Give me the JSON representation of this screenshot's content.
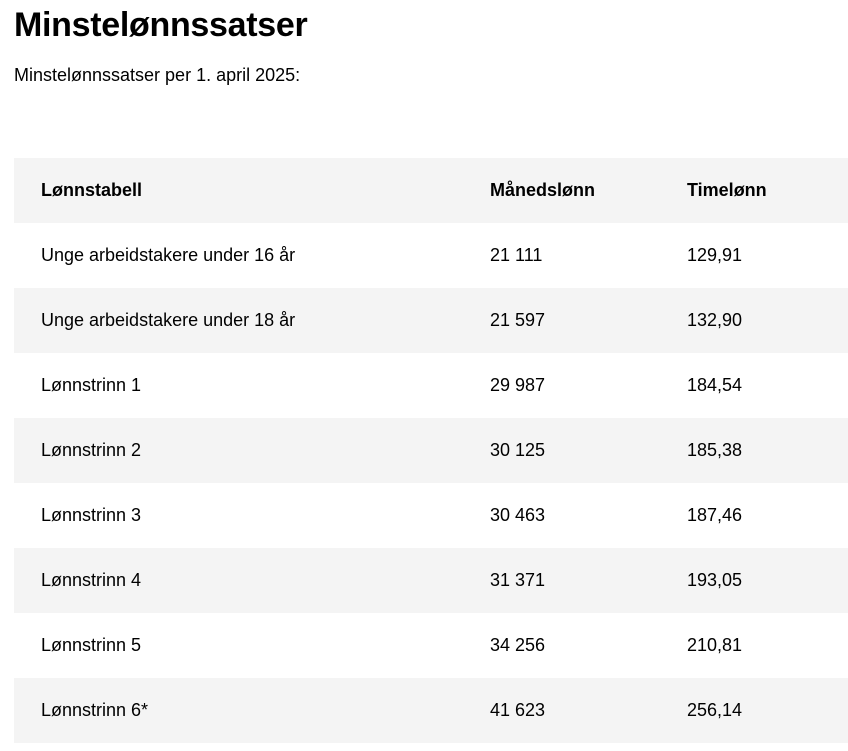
{
  "page": {
    "title": "Minstelønnssatser",
    "subtitle": "Minstelønnssatser per 1. april 2025:"
  },
  "table": {
    "headers": [
      "Lønnstabell",
      "Månedslønn",
      "Timelønn"
    ],
    "rows": [
      [
        "Unge arbeidstakere under 16 år",
        "21 111",
        "129,91"
      ],
      [
        "Unge arbeidstakere under 18 år",
        "21 597",
        "132,90"
      ],
      [
        "Lønnstrinn 1",
        "29 987",
        "184,54"
      ],
      [
        "Lønnstrinn 2",
        "30 125",
        "185,38"
      ],
      [
        "Lønnstrinn 3",
        "30 463",
        "187,46"
      ],
      [
        "Lønnstrinn 4",
        "31 371",
        "193,05"
      ],
      [
        "Lønnstrinn 5",
        "34 256",
        "210,81"
      ],
      [
        "Lønnstrinn 6*",
        "41 623",
        "256,14"
      ]
    ]
  },
  "colors": {
    "text": "#000000",
    "row_stripe": "#f4f4f4",
    "background": "#ffffff"
  }
}
